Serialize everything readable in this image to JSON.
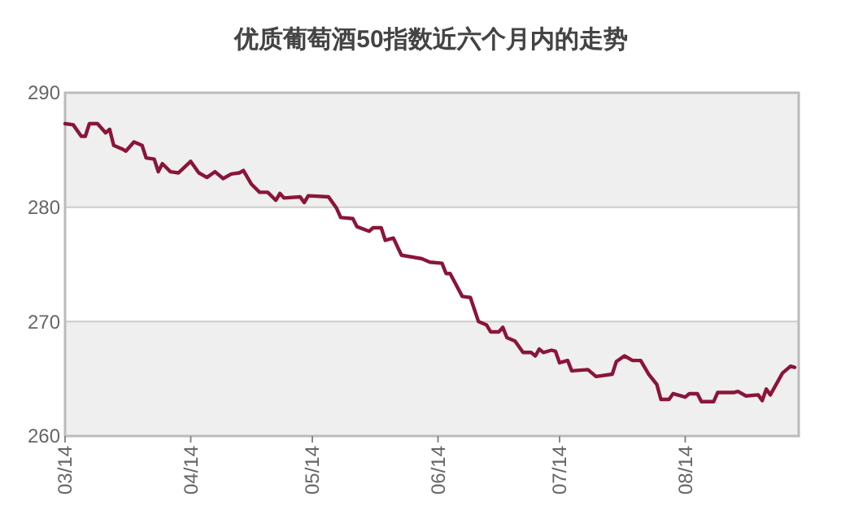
{
  "chart_data": {
    "type": "line",
    "title": "优质葡萄酒50指数近六个月内的走势",
    "x": [
      "2014-03-01",
      "2014-03-03",
      "2014-03-05",
      "2014-03-06",
      "2014-03-07",
      "2014-03-09",
      "2014-03-11",
      "2014-03-12",
      "2014-03-13",
      "2014-03-15",
      "2014-03-16",
      "2014-03-18",
      "2014-03-20",
      "2014-03-21",
      "2014-03-23",
      "2014-03-24",
      "2014-03-25",
      "2014-03-27",
      "2014-03-29",
      "2014-04-01",
      "2014-04-03",
      "2014-04-05",
      "2014-04-07",
      "2014-04-09",
      "2014-04-11",
      "2014-04-13",
      "2014-04-14",
      "2014-04-16",
      "2014-04-18",
      "2014-04-20",
      "2014-04-22",
      "2014-04-23",
      "2014-04-24",
      "2014-04-28",
      "2014-04-29",
      "2014-04-30",
      "2014-05-05",
      "2014-05-07",
      "2014-05-08",
      "2014-05-11",
      "2014-05-12",
      "2014-05-15",
      "2014-05-16",
      "2014-05-18",
      "2014-05-19",
      "2014-05-21",
      "2014-05-23",
      "2014-05-28",
      "2014-05-30",
      "2014-06-02",
      "2014-06-03",
      "2014-06-04",
      "2014-06-07",
      "2014-06-09",
      "2014-06-11",
      "2014-06-13",
      "2014-06-14",
      "2014-06-16",
      "2014-06-17",
      "2014-06-18",
      "2014-06-20",
      "2014-06-22",
      "2014-06-24",
      "2014-06-25",
      "2014-06-26",
      "2014-06-27",
      "2014-06-29",
      "2014-06-30",
      "2014-07-01",
      "2014-07-03",
      "2014-07-04",
      "2014-07-08",
      "2014-07-10",
      "2014-07-14",
      "2014-07-15",
      "2014-07-17",
      "2014-07-19",
      "2014-07-21",
      "2014-07-23",
      "2014-07-25",
      "2014-07-26",
      "2014-07-28",
      "2014-07-29",
      "2014-08-01",
      "2014-08-02",
      "2014-08-04",
      "2014-08-05",
      "2014-08-08",
      "2014-08-09",
      "2014-08-13",
      "2014-08-14",
      "2014-08-16",
      "2014-08-19",
      "2014-08-20",
      "2014-08-21",
      "2014-08-22",
      "2014-08-25",
      "2014-08-27",
      "2014-08-28"
    ],
    "series": [
      {
        "color": "#8a1538",
        "values": [
          287.3,
          287.2,
          286.2,
          286.2,
          287.3,
          287.3,
          286.5,
          286.8,
          285.4,
          285.1,
          284.9,
          285.7,
          285.4,
          284.3,
          284.2,
          283.1,
          283.8,
          283.1,
          283.0,
          284.0,
          283.0,
          282.6,
          283.1,
          282.5,
          282.9,
          283.0,
          283.2,
          282.0,
          281.3,
          281.3,
          280.6,
          281.2,
          280.8,
          280.9,
          280.4,
          281.0,
          280.9,
          279.9,
          279.1,
          279.0,
          278.3,
          277.9,
          278.2,
          278.2,
          277.1,
          277.3,
          275.8,
          275.5,
          275.2,
          275.1,
          274.2,
          274.2,
          272.2,
          272.1,
          270.0,
          269.7,
          269.1,
          269.1,
          269.5,
          268.6,
          268.3,
          267.3,
          267.3,
          267.0,
          267.6,
          267.3,
          267.5,
          267.4,
          266.4,
          266.6,
          265.7,
          265.8,
          265.2,
          265.4,
          266.5,
          267.0,
          266.6,
          266.6,
          265.4,
          264.5,
          263.2,
          263.2,
          263.7,
          263.4,
          263.7,
          263.7,
          263.0,
          263.0,
          263.8,
          263.8,
          263.9,
          263.5,
          263.6,
          263.1,
          264.1,
          263.6,
          265.5,
          266.1,
          266.0
        ]
      }
    ],
    "xlim": [
      "2014-03-01",
      "2014-08-29"
    ],
    "xticks": [
      {
        "value": "2014-03-01",
        "label": "03/14"
      },
      {
        "value": "2014-04-01",
        "label": "04/14"
      },
      {
        "value": "2014-05-01",
        "label": "05/14"
      },
      {
        "value": "2014-06-01",
        "label": "06/14"
      },
      {
        "value": "2014-07-01",
        "label": "07/14"
      },
      {
        "value": "2014-08-01",
        "label": "08/14"
      }
    ],
    "ylim": [
      260,
      290
    ],
    "yticks": [
      260,
      270,
      280,
      290
    ],
    "grid": "y",
    "marker": "none",
    "line_style": "solid"
  }
}
